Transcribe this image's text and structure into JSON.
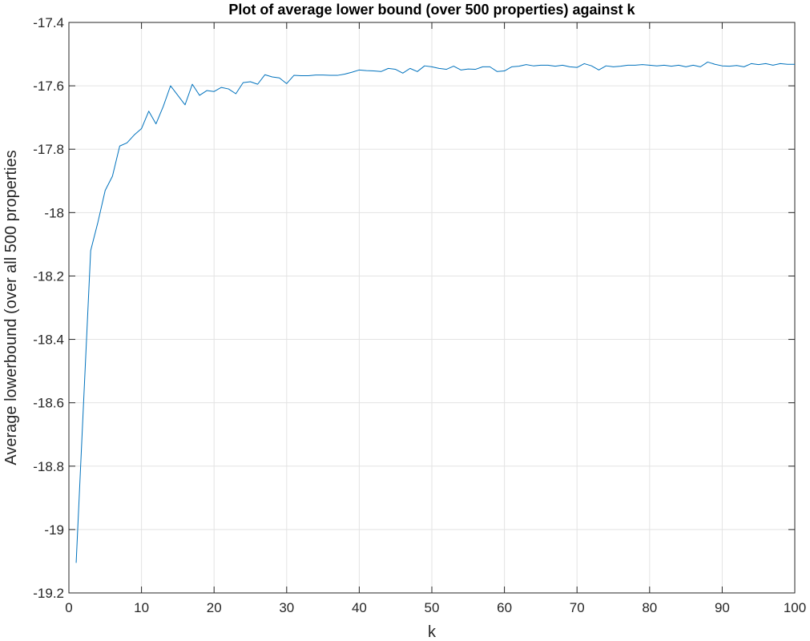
{
  "chart_data": {
    "type": "line",
    "title": "Plot of average lower bound (over 500 properties) against k",
    "xlabel": "k",
    "ylabel": "Average lowerbound (over all 500 properties",
    "xlim": [
      0,
      100
    ],
    "ylim": [
      -19.2,
      -17.4
    ],
    "xticks": [
      0,
      10,
      20,
      30,
      40,
      50,
      60,
      70,
      80,
      90,
      100
    ],
    "xtick_labels": [
      "0",
      "10",
      "20",
      "30",
      "40",
      "50",
      "60",
      "70",
      "80",
      "90",
      "100"
    ],
    "yticks": [
      -17.4,
      -17.6,
      -17.8,
      -18,
      -18.2,
      -18.4,
      -18.6,
      -18.8,
      -19,
      -19.2
    ],
    "ytick_labels": [
      "-17.4",
      "-17.6",
      "-17.8",
      "-18",
      "-18.2",
      "-18.4",
      "-18.6",
      "-18.8",
      "-19",
      "-19.2"
    ],
    "grid": true,
    "line_color": "#0072BD",
    "series": [
      {
        "x": [
          1,
          2,
          3,
          4,
          5,
          6,
          7,
          8,
          9,
          10,
          11,
          12,
          13,
          14,
          15,
          16,
          17,
          18,
          19,
          20,
          21,
          22,
          23,
          24,
          25,
          26,
          27,
          28,
          29,
          30,
          31,
          32,
          33,
          34,
          35,
          36,
          37,
          38,
          39,
          40,
          41,
          42,
          43,
          44,
          45,
          46,
          47,
          48,
          49,
          50,
          51,
          52,
          53,
          54,
          55,
          56,
          57,
          58,
          59,
          60,
          61,
          62,
          63,
          64,
          65,
          66,
          67,
          68,
          69,
          70,
          71,
          72,
          73,
          74,
          75,
          76,
          77,
          78,
          79,
          80,
          81,
          82,
          83,
          84,
          85,
          86,
          87,
          88,
          89,
          90,
          91,
          92,
          93,
          94,
          95,
          96,
          97,
          98,
          99,
          100
        ],
        "values": [
          -19.105,
          -18.61,
          -18.12,
          -18.03,
          -17.93,
          -17.885,
          -17.79,
          -17.78,
          -17.755,
          -17.735,
          -17.68,
          -17.72,
          -17.665,
          -17.6,
          -17.63,
          -17.66,
          -17.595,
          -17.63,
          -17.615,
          -17.618,
          -17.605,
          -17.61,
          -17.625,
          -17.59,
          -17.587,
          -17.595,
          -17.565,
          -17.572,
          -17.575,
          -17.593,
          -17.567,
          -17.568,
          -17.568,
          -17.566,
          -17.566,
          -17.567,
          -17.567,
          -17.563,
          -17.557,
          -17.55,
          -17.552,
          -17.553,
          -17.555,
          -17.545,
          -17.548,
          -17.56,
          -17.545,
          -17.555,
          -17.537,
          -17.54,
          -17.545,
          -17.548,
          -17.538,
          -17.55,
          -17.547,
          -17.548,
          -17.54,
          -17.54,
          -17.555,
          -17.553,
          -17.54,
          -17.538,
          -17.533,
          -17.537,
          -17.535,
          -17.535,
          -17.538,
          -17.535,
          -17.54,
          -17.542,
          -17.53,
          -17.537,
          -17.55,
          -17.537,
          -17.54,
          -17.538,
          -17.535,
          -17.535,
          -17.533,
          -17.535,
          -17.537,
          -17.535,
          -17.538,
          -17.535,
          -17.54,
          -17.535,
          -17.54,
          -17.525,
          -17.532,
          -17.537,
          -17.538,
          -17.536,
          -17.54,
          -17.53,
          -17.533,
          -17.53,
          -17.535,
          -17.53,
          -17.532,
          -17.532
        ]
      }
    ]
  }
}
